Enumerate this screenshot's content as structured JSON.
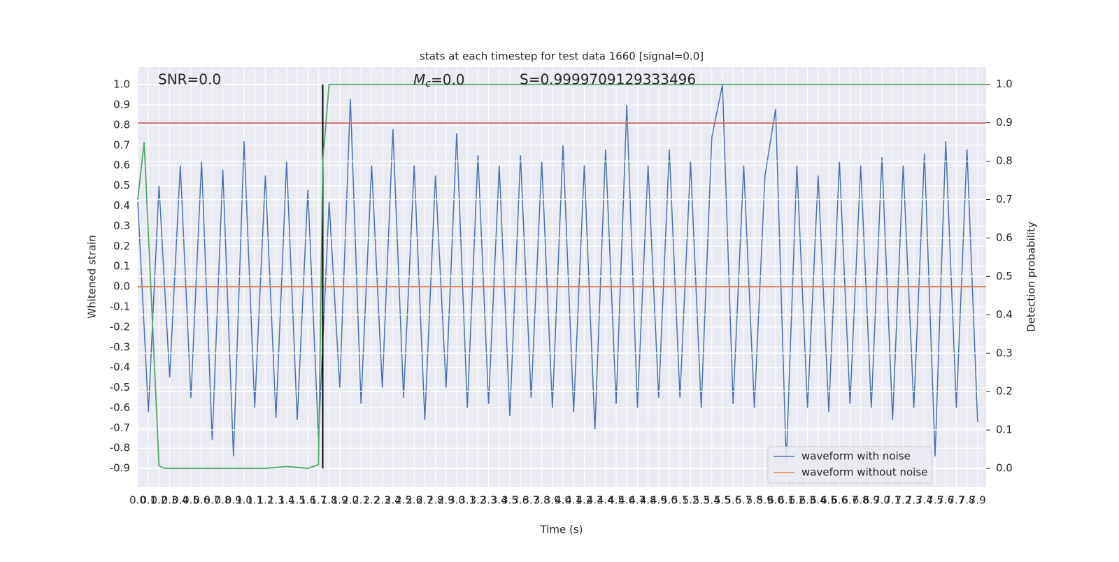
{
  "chart_data": {
    "type": "line",
    "title": "stats at each timestep for test data 1660 [signal=0.0]",
    "xlabel": "Time (s)",
    "ylabel": "Whitened strain",
    "y2label": "Detection probability",
    "annotations": {
      "snr": "SNR=0.0",
      "mc_symbol": "M",
      "mc_sub": "c",
      "mc_value": "=0.0",
      "s": "S=0.9999709129333496"
    },
    "xlim": [
      0,
      7.98
    ],
    "ylim": [
      -0.993,
      1.087
    ],
    "y2lim": [
      -0.049,
      1.045
    ],
    "xticks": [
      {
        "value": 0,
        "label": "0.0"
      },
      0.1,
      0.2,
      0.3,
      0.4,
      0.5,
      0.6,
      0.7,
      0.8,
      0.9,
      {
        "value": 1,
        "label": "1.0"
      },
      1.1,
      1.2,
      1.3,
      1.4,
      1.5,
      1.6,
      1.7,
      1.8,
      1.9,
      {
        "value": 2,
        "label": "2.0"
      },
      2.1,
      2.2,
      2.3,
      2.4,
      2.5,
      2.6,
      2.7,
      2.8,
      2.9,
      {
        "value": 3,
        "label": "3.0"
      },
      3.1,
      3.2,
      3.3,
      3.4,
      3.5,
      3.6,
      3.7,
      3.8,
      3.9,
      {
        "value": 4,
        "label": "4.0"
      },
      4.1,
      4.2,
      4.3,
      4.4,
      4.5,
      4.6,
      4.7,
      4.8,
      4.9,
      {
        "value": 5,
        "label": "5.0"
      },
      5.1,
      5.2,
      5.3,
      5.4,
      5.5,
      5.6,
      5.7,
      5.8,
      5.9,
      {
        "value": 6,
        "label": "6.0"
      },
      6.1,
      6.2,
      6.3,
      6.4,
      6.5,
      6.6,
      6.7,
      6.8,
      6.9,
      {
        "value": 7,
        "label": "7.0"
      },
      7.1,
      7.2,
      7.3,
      7.4,
      7.5,
      7.6,
      7.7,
      7.8,
      7.9
    ],
    "yticks": [
      -0.9,
      -0.8,
      -0.7,
      -0.6,
      -0.5,
      -0.4,
      -0.3,
      -0.2,
      -0.1,
      {
        "value": 0,
        "label": "0.0"
      },
      0.1,
      0.2,
      0.3,
      0.4,
      0.5,
      0.6,
      0.7,
      0.8,
      0.9,
      {
        "value": 1,
        "label": "1.0"
      }
    ],
    "y2ticks": [
      {
        "value": 0,
        "label": "0.0"
      },
      0.1,
      0.2,
      0.3,
      0.4,
      0.5,
      0.6,
      0.7,
      0.8,
      0.9,
      {
        "value": 1,
        "label": "1.0"
      }
    ],
    "grid": true,
    "legend": "lower right",
    "series": [
      {
        "name": "waveform with noise",
        "color": "#4c72b0",
        "x": [
          0,
          0.1,
          0.2,
          0.3,
          0.4,
          0.5,
          0.6,
          0.7,
          0.8,
          0.9,
          1,
          1.1,
          1.2,
          1.3,
          1.4,
          1.5,
          1.6,
          1.7,
          1.8,
          1.9,
          2,
          2.1,
          2.2,
          2.3,
          2.4,
          2.5,
          2.6,
          2.7,
          2.8,
          2.9,
          3,
          3.1,
          3.2,
          3.3,
          3.4,
          3.5,
          3.6,
          3.7,
          3.8,
          3.9,
          4,
          4.1,
          4.2,
          4.3,
          4.4,
          4.5,
          4.6,
          4.7,
          4.8,
          4.9,
          5,
          5.1,
          5.2,
          5.3,
          5.4,
          5.5,
          5.6,
          5.7,
          5.8,
          5.9,
          6,
          6.1,
          6.2,
          6.3,
          6.4,
          6.5,
          6.6,
          6.7,
          6.8,
          6.9,
          7,
          7.1,
          7.2,
          7.3,
          7.4,
          7.5,
          7.6,
          7.7,
          7.8,
          7.9
        ],
        "values": [
          0.42,
          -0.62,
          0.5,
          -0.45,
          0.6,
          -0.55,
          0.62,
          -0.76,
          0.58,
          -0.84,
          0.72,
          -0.6,
          0.55,
          -0.65,
          0.62,
          -0.66,
          0.48,
          -0.75,
          0.42,
          -0.5,
          0.93,
          -0.58,
          0.6,
          -0.5,
          0.78,
          -0.55,
          0.6,
          -0.66,
          0.55,
          -0.5,
          0.76,
          -0.6,
          0.65,
          -0.58,
          0.6,
          -0.64,
          0.65,
          -0.55,
          0.62,
          -0.6,
          0.7,
          -0.62,
          0.6,
          -0.71,
          0.68,
          -0.58,
          0.9,
          -0.6,
          0.6,
          -0.55,
          0.68,
          -0.55,
          0.62,
          -0.6,
          0.74,
          1.0,
          -0.58,
          0.6,
          -0.6,
          0.55,
          0.88,
          -0.87,
          0.6,
          -0.6,
          0.55,
          -0.62,
          0.62,
          -0.58,
          0.6,
          -0.6,
          0.64,
          -0.66,
          0.6,
          -0.6,
          0.66,
          -0.84,
          0.72,
          -0.6,
          0.68,
          -0.67
        ]
      },
      {
        "name": "waveform without noise",
        "color": "#dd8452",
        "x": [
          0,
          7.98
        ],
        "values": [
          0,
          0
        ]
      }
    ],
    "threshold": {
      "value": 0.81,
      "color": "#c44e52"
    },
    "vline": {
      "x": 1.74,
      "y2": [
        0,
        1
      ],
      "color": "#000000"
    },
    "probability": {
      "color": "#55a868",
      "x": [
        0,
        0.06,
        0.11,
        0.2,
        0.25,
        0.6,
        1.2,
        1.4,
        1.6,
        1.7,
        1.74,
        1.8,
        7.98
      ],
      "values": [
        0.7,
        0.85,
        0.55,
        0.007,
        0,
        0,
        0,
        0.005,
        0,
        0.01,
        0.8,
        1,
        1
      ]
    }
  }
}
